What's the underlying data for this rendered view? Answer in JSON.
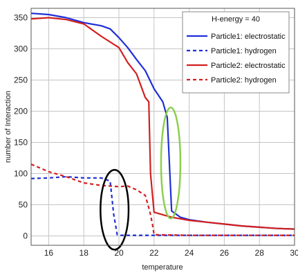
{
  "chart_data": {
    "type": "line",
    "xlabel": "temperature",
    "ylabel": "number of Interaction",
    "xlim": [
      15,
      30
    ],
    "ylim": [
      -15,
      365
    ],
    "x_ticks": [
      16,
      18,
      20,
      22,
      24,
      26,
      28,
      30
    ],
    "y_ticks": [
      0,
      50,
      100,
      150,
      200,
      250,
      300,
      350
    ],
    "grid": true,
    "legend_title": "H-energy = 40",
    "legend_position": "top-right",
    "series": [
      {
        "name": "Particle1: electrostatic",
        "color": "#1f2ed6",
        "style": "solid",
        "points": [
          [
            15,
            357
          ],
          [
            16,
            355
          ],
          [
            17,
            350
          ],
          [
            18,
            342
          ],
          [
            19,
            337
          ],
          [
            19.5,
            332
          ],
          [
            20,
            318
          ],
          [
            20.5,
            302
          ],
          [
            21,
            283
          ],
          [
            21.5,
            265
          ],
          [
            22,
            236
          ],
          [
            22.5,
            215
          ],
          [
            22.75,
            190
          ],
          [
            23,
            40
          ],
          [
            23.5,
            30
          ],
          [
            24,
            26
          ],
          [
            25,
            22
          ],
          [
            26,
            19
          ],
          [
            27,
            16
          ],
          [
            28,
            14
          ],
          [
            29,
            12
          ],
          [
            30,
            11
          ]
        ]
      },
      {
        "name": "Particle1: hydrogen",
        "color": "#1f2ed6",
        "style": "dashed",
        "points": [
          [
            15,
            92
          ],
          [
            16,
            93
          ],
          [
            17,
            95
          ],
          [
            18,
            93
          ],
          [
            19,
            93
          ],
          [
            19.5,
            88
          ],
          [
            19.7,
            35
          ],
          [
            19.9,
            2
          ],
          [
            20,
            1
          ],
          [
            22,
            1
          ],
          [
            24,
            1
          ],
          [
            26,
            1
          ],
          [
            28,
            1
          ],
          [
            30,
            1
          ]
        ]
      },
      {
        "name": "Particle2: electrostatic",
        "color": "#d21f1f",
        "style": "solid",
        "points": [
          [
            15,
            348
          ],
          [
            16,
            350
          ],
          [
            17,
            347
          ],
          [
            18,
            340
          ],
          [
            19,
            320
          ],
          [
            20,
            302
          ],
          [
            20.5,
            278
          ],
          [
            21,
            260
          ],
          [
            21.5,
            222
          ],
          [
            21.7,
            215
          ],
          [
            21.8,
            100
          ],
          [
            22,
            38
          ],
          [
            22.5,
            34
          ],
          [
            23,
            30
          ],
          [
            24,
            25
          ],
          [
            25,
            22
          ],
          [
            26,
            19
          ],
          [
            27,
            16
          ],
          [
            28,
            14
          ],
          [
            29,
            12
          ],
          [
            30,
            11
          ]
        ]
      },
      {
        "name": "Particle2: hydrogen",
        "color": "#d21f1f",
        "style": "dashed",
        "points": [
          [
            15,
            115
          ],
          [
            16,
            103
          ],
          [
            17,
            95
          ],
          [
            18,
            85
          ],
          [
            19,
            81
          ],
          [
            20,
            79
          ],
          [
            20.5,
            80
          ],
          [
            21,
            74
          ],
          [
            21.5,
            65
          ],
          [
            21.75,
            40
          ],
          [
            21.9,
            20
          ],
          [
            22,
            2
          ],
          [
            24,
            1
          ],
          [
            26,
            1
          ],
          [
            28,
            1
          ],
          [
            30,
            1
          ]
        ]
      }
    ],
    "annotations": [
      {
        "shape": "ellipse",
        "color": "#8ccf4d",
        "cx": 22.95,
        "cy": 117,
        "rx": 0.55,
        "ry": 89
      },
      {
        "shape": "ellipse",
        "color": "#000000",
        "cx": 19.75,
        "cy": 42,
        "rx": 0.8,
        "ry": 64
      }
    ]
  }
}
